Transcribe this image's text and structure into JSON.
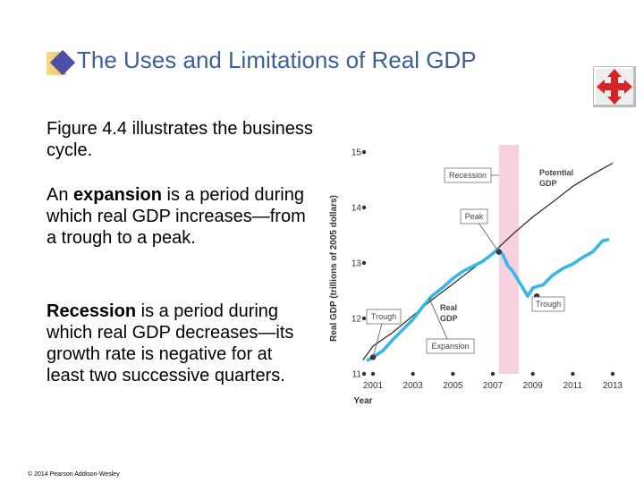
{
  "slide": {
    "title": "The Uses and Limitations of Real GDP",
    "icons": {
      "title_bullet": "diamond-bullet-icon",
      "nav": "four-arrow-navigation-icon"
    },
    "intro": "Figure 4.4 illustrates the business cycle.",
    "expansion": {
      "term": "expansion",
      "before": "An ",
      "after": " is a period during which real GDP increases—from a trough to a peak."
    },
    "recession": {
      "term": "Recession",
      "after": " is a period during which real GDP decreases—its growth rate is negative for at least two successive quarters."
    },
    "copyright": "© 2014 Pearson Addison-Wesley",
    "colors": {
      "title": "#3a5f9a",
      "diamond": "#4b4fa8",
      "nav_arrows": "#d62424",
      "real_gdp": "#38b6e8",
      "recession_band": "#f7d1df"
    }
  },
  "chart_data": {
    "type": "line",
    "xlabel": "Year",
    "ylabel": "Real GDP (trillions of 2005 dollars)",
    "xlim": [
      2001,
      2013
    ],
    "ylim": [
      11,
      15
    ],
    "x_ticks": [
      "2001",
      "2003",
      "2005",
      "2007",
      "2009",
      "2011",
      "2013"
    ],
    "y_ticks": [
      "11",
      "12",
      "13",
      "14",
      "15"
    ],
    "recession_band": [
      2007.3,
      2008.3
    ],
    "series": [
      {
        "name": "Potential GDP",
        "x": [
          2000.5,
          2001,
          2002,
          2003,
          2004,
          2005,
          2006,
          2007,
          2008,
          2009,
          2010,
          2011,
          2012,
          2013
        ],
        "y": [
          11.25,
          11.5,
          11.75,
          12.05,
          12.35,
          12.62,
          12.9,
          13.18,
          13.52,
          13.83,
          14.1,
          14.38,
          14.6,
          14.8
        ]
      },
      {
        "name": "Real GDP",
        "x": [
          2000.75,
          2001,
          2001.5,
          2002,
          2002.5,
          2003,
          2003.5,
          2004,
          2004.5,
          2005,
          2005.5,
          2006,
          2006.5,
          2007,
          2007.25,
          2007.5,
          2007.75,
          2008,
          2008.25,
          2008.5,
          2008.75,
          2009,
          2009.25,
          2009.5,
          2010,
          2010.5,
          2011,
          2011.5,
          2012,
          2012.5,
          2012.75
        ],
        "y": [
          11.25,
          11.3,
          11.42,
          11.62,
          11.8,
          11.98,
          12.22,
          12.42,
          12.56,
          12.72,
          12.85,
          12.94,
          13.03,
          13.17,
          13.25,
          13.15,
          12.95,
          12.85,
          12.7,
          12.55,
          12.4,
          12.55,
          12.58,
          12.6,
          12.78,
          12.9,
          12.98,
          13.1,
          13.2,
          13.4,
          13.42
        ]
      }
    ],
    "points": [
      {
        "label": "Trough",
        "x": 2001,
        "y": 11.3
      },
      {
        "label": "Peak",
        "x": 2007.3,
        "y": 13.2
      },
      {
        "label": "Trough",
        "x": 2009.2,
        "y": 12.4
      }
    ],
    "annotations": [
      "Recession",
      "Potential GDP",
      "Peak",
      "Real GDP",
      "Trough",
      "Expansion",
      "Trough"
    ]
  }
}
